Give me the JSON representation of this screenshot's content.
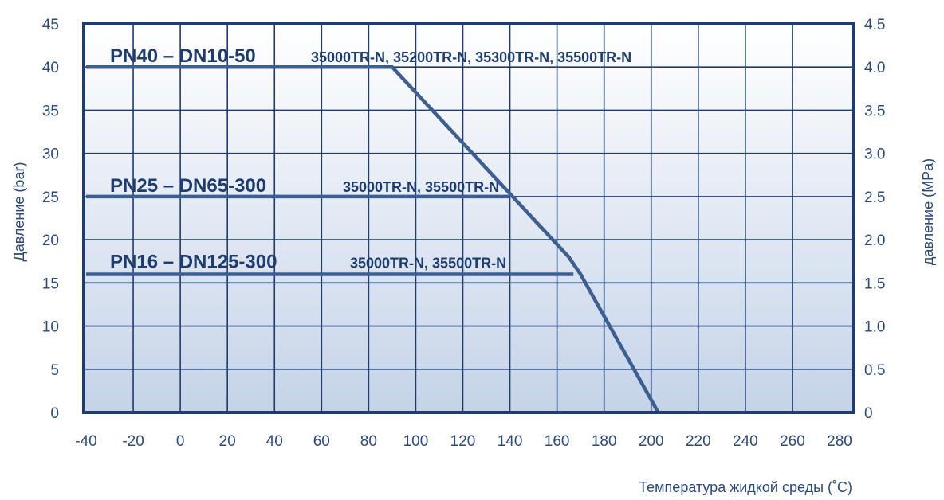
{
  "chart_data": {
    "type": "line",
    "xlabel": "Температура жидкой среды (˚C)",
    "ylabel_left": "Давление (bar)",
    "ylabel_right": "давление (MPa)",
    "xlim": [
      -40,
      280
    ],
    "ylim": [
      0,
      45
    ],
    "x_ticks": [
      "-40",
      "-20",
      "0",
      "20",
      "40",
      "60",
      "80",
      "100",
      "120",
      "140",
      "160",
      "180",
      "200",
      "220",
      "240",
      "260",
      "280"
    ],
    "y_ticks_left": [
      "0",
      "5",
      "10",
      "15",
      "20",
      "25",
      "30",
      "35",
      "40",
      "45"
    ],
    "y_ticks_right": [
      "0",
      "0.5",
      "1.0",
      "1.5",
      "2.0",
      "2.5",
      "3.0",
      "3.5",
      "4.0",
      "4.5"
    ],
    "grid": true,
    "colors": {
      "line": "#3d5e91",
      "grid": "#1e3c6e",
      "fill_top": "#ffffff",
      "fill_bottom": "#c5d3e8",
      "text": "#2b4a7a"
    },
    "series": [
      {
        "name": "PN40 – DN10-50",
        "models": "35000TR-N, 35200TR-N, 35300TR-N, 35500TR-N",
        "x": [
          -40,
          90,
          165,
          170,
          203
        ],
        "y": [
          40,
          40,
          18,
          16,
          0
        ]
      },
      {
        "name": "PN25 – DN65-300",
        "models": "35000TR-N, 35500TR-N",
        "x": [
          -40,
          140
        ],
        "y": [
          25,
          25
        ]
      },
      {
        "name": "PN16 – DN125-300",
        "models": "35000TR-N,   35500TR-N",
        "x": [
          -40,
          167
        ],
        "y": [
          16,
          16
        ]
      }
    ]
  }
}
